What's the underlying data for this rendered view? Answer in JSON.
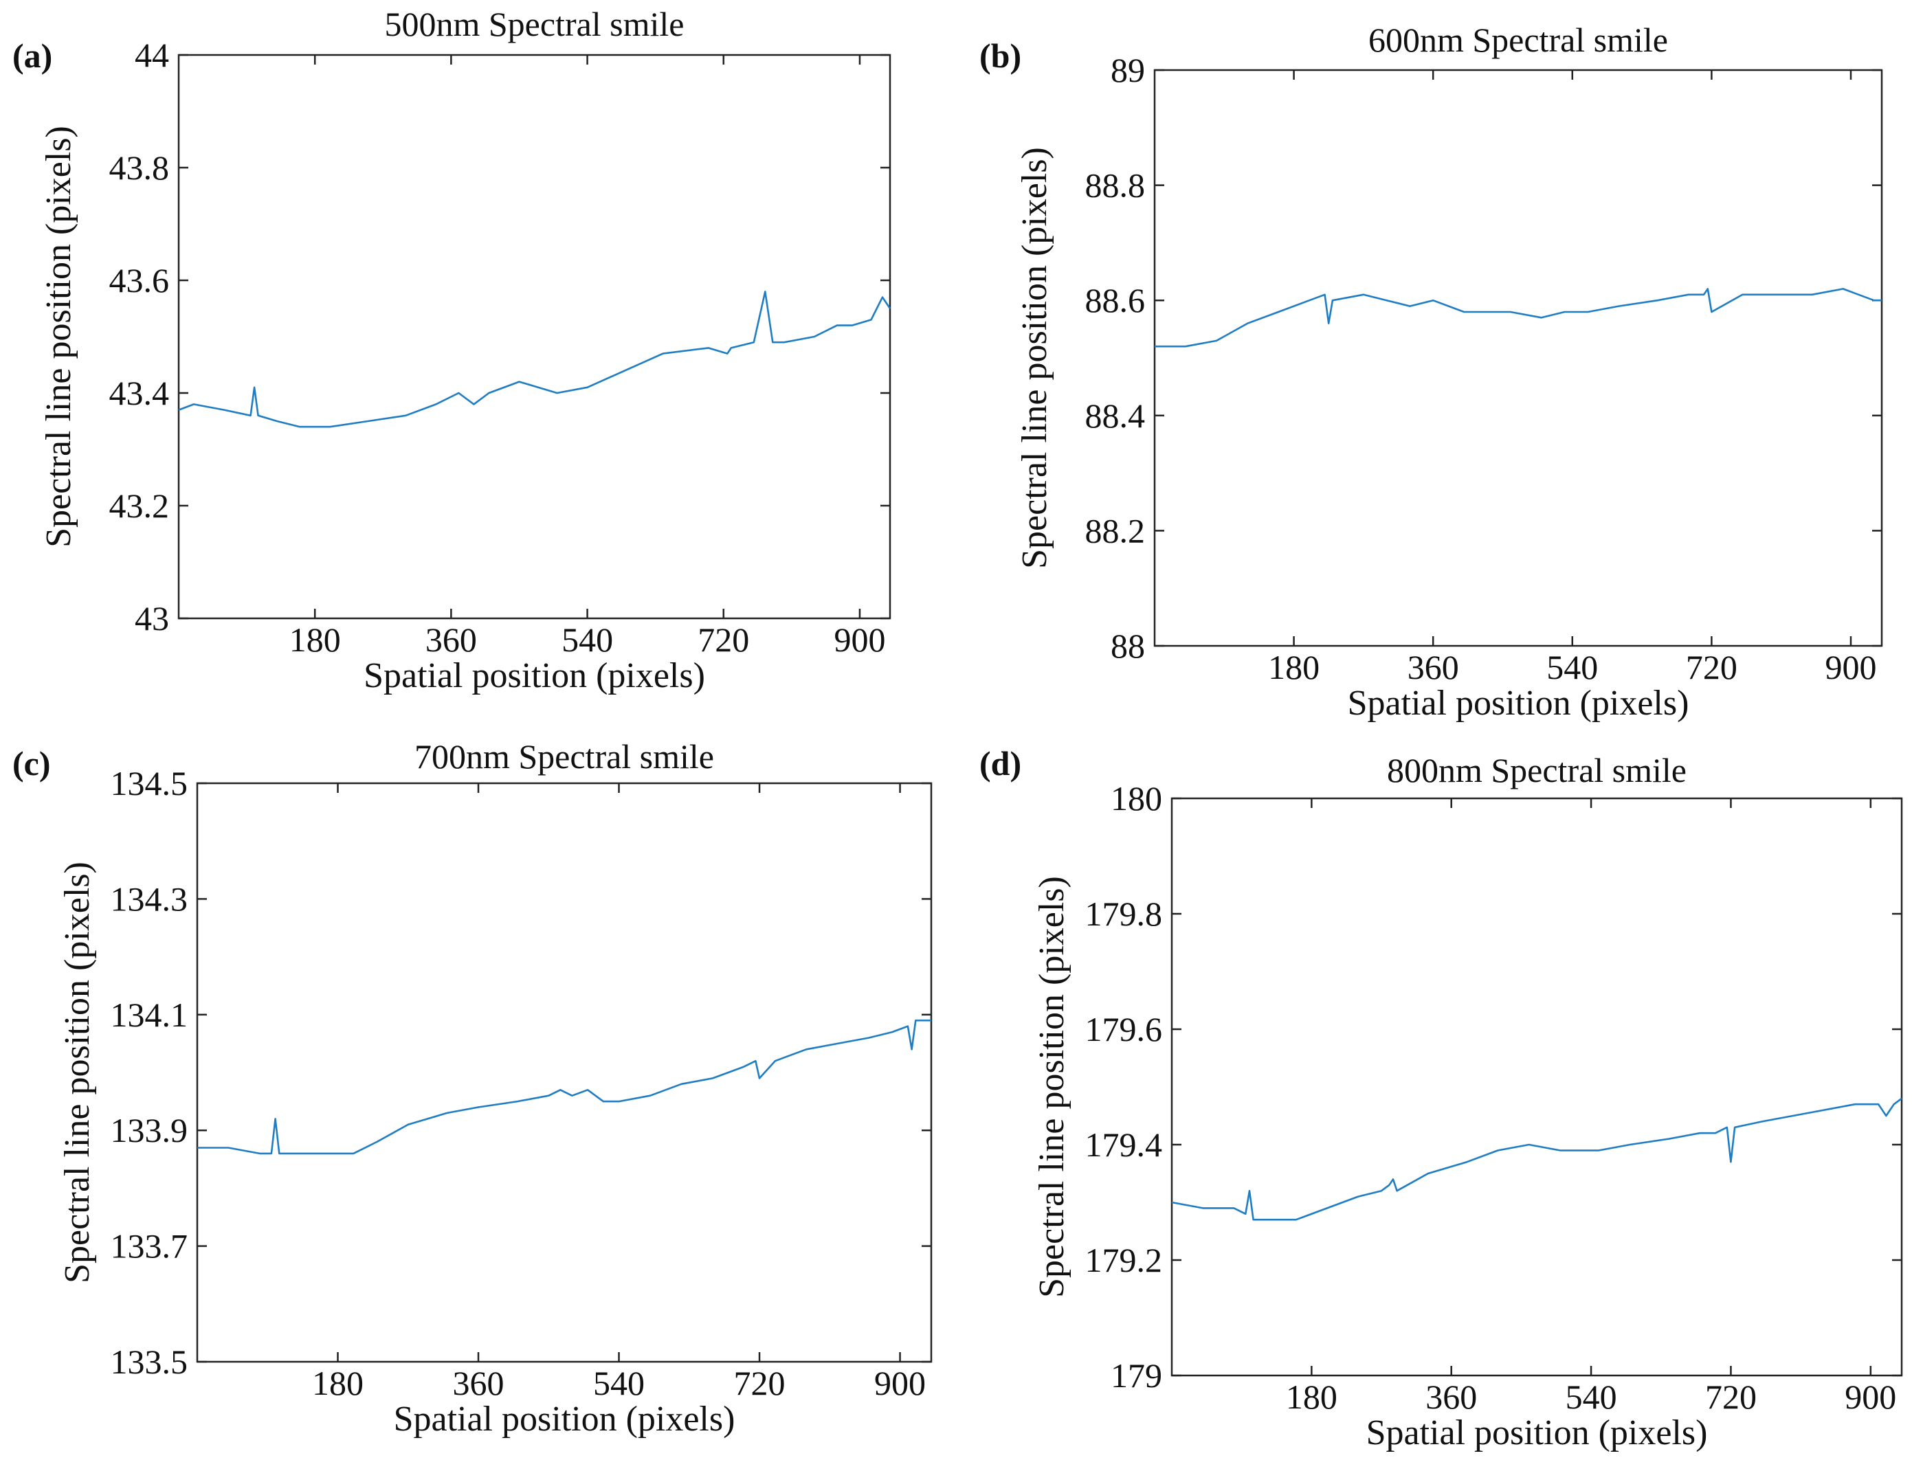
{
  "chart_data": [
    {
      "type": "line",
      "panel": "(a)",
      "title": "500nm Spectral smile",
      "xlabel": "Spatial position (pixels)",
      "ylabel": "Spectral line position (pixels)",
      "xlim": [
        0,
        940
      ],
      "ylim": [
        43,
        44
      ],
      "xticks": [
        180,
        360,
        540,
        720,
        900
      ],
      "yticks": [
        43,
        43.2,
        43.4,
        43.6,
        43.8,
        44
      ],
      "ytick_labels": [
        "43",
        "43.2",
        "43.4",
        "43.6",
        "43.8",
        "44"
      ],
      "series": [
        {
          "name": "500nm",
          "x": [
            0,
            20,
            60,
            95,
            100,
            105,
            130,
            160,
            200,
            250,
            300,
            340,
            370,
            390,
            410,
            450,
            500,
            540,
            590,
            640,
            700,
            725,
            730,
            760,
            775,
            785,
            800,
            840,
            870,
            890,
            915,
            930,
            940
          ],
          "y": [
            43.37,
            43.38,
            43.37,
            43.36,
            43.41,
            43.36,
            43.35,
            43.34,
            43.34,
            43.35,
            43.36,
            43.38,
            43.4,
            43.38,
            43.4,
            43.42,
            43.4,
            43.41,
            43.44,
            43.47,
            43.48,
            43.47,
            43.48,
            43.49,
            43.58,
            43.49,
            43.49,
            43.5,
            43.52,
            43.52,
            43.53,
            43.57,
            43.55
          ]
        }
      ]
    },
    {
      "type": "line",
      "panel": "(b)",
      "title": "600nm Spectral smile",
      "xlabel": "Spatial position (pixels)",
      "ylabel": "Spectral line position (pixels)",
      "xlim": [
        0,
        940
      ],
      "ylim": [
        88,
        89
      ],
      "xticks": [
        180,
        360,
        540,
        720,
        900
      ],
      "yticks": [
        88,
        88.2,
        88.4,
        88.6,
        88.8,
        89
      ],
      "ytick_labels": [
        "88",
        "88.2",
        "88.4",
        "88.6",
        "88.8",
        "89"
      ],
      "series": [
        {
          "name": "600nm",
          "x": [
            0,
            40,
            80,
            120,
            160,
            200,
            220,
            225,
            230,
            270,
            300,
            330,
            360,
            400,
            460,
            500,
            530,
            560,
            600,
            650,
            690,
            710,
            715,
            720,
            760,
            800,
            850,
            890,
            910,
            930,
            940
          ],
          "y": [
            88.52,
            88.52,
            88.53,
            88.56,
            88.58,
            88.6,
            88.61,
            88.56,
            88.6,
            88.61,
            88.6,
            88.59,
            88.6,
            88.58,
            88.58,
            88.57,
            88.58,
            88.58,
            88.59,
            88.6,
            88.61,
            88.61,
            88.62,
            88.58,
            88.61,
            88.61,
            88.61,
            88.62,
            88.61,
            88.6,
            88.6
          ]
        }
      ]
    },
    {
      "type": "line",
      "panel": "(c)",
      "title": "700nm Spectral smile",
      "xlabel": "Spatial position (pixels)",
      "ylabel": "Spectral line position (pixels)",
      "xlim": [
        0,
        940
      ],
      "ylim": [
        133.5,
        134.5
      ],
      "xticks": [
        180,
        360,
        540,
        720,
        900
      ],
      "yticks": [
        133.5,
        133.7,
        133.9,
        134.1,
        134.3,
        134.5
      ],
      "ytick_labels": [
        "133.5",
        "133.7",
        "133.9",
        "134.1",
        "134.3",
        "134.5"
      ],
      "series": [
        {
          "name": "700nm",
          "x": [
            0,
            40,
            80,
            95,
            100,
            105,
            130,
            160,
            200,
            230,
            270,
            320,
            360,
            410,
            450,
            465,
            480,
            500,
            520,
            540,
            580,
            620,
            660,
            700,
            715,
            720,
            740,
            780,
            820,
            860,
            890,
            910,
            915,
            920,
            940
          ],
          "y": [
            133.87,
            133.87,
            133.86,
            133.86,
            133.92,
            133.86,
            133.86,
            133.86,
            133.86,
            133.88,
            133.91,
            133.93,
            133.94,
            133.95,
            133.96,
            133.97,
            133.96,
            133.97,
            133.95,
            133.95,
            133.96,
            133.98,
            133.99,
            134.01,
            134.02,
            133.99,
            134.02,
            134.04,
            134.05,
            134.06,
            134.07,
            134.08,
            134.04,
            134.09,
            134.09
          ]
        }
      ]
    },
    {
      "type": "line",
      "panel": "(d)",
      "title": "800nm Spectral smile",
      "xlabel": "Spatial position (pixels)",
      "ylabel": "Spectral line position (pixels)",
      "xlim": [
        0,
        940
      ],
      "ylim": [
        179,
        180
      ],
      "xticks": [
        180,
        360,
        540,
        720,
        900
      ],
      "yticks": [
        179,
        179.2,
        179.4,
        179.6,
        179.8,
        180
      ],
      "ytick_labels": [
        "179",
        "179.2",
        "179.4",
        "179.6",
        "179.8",
        "180"
      ],
      "series": [
        {
          "name": "800nm",
          "x": [
            0,
            40,
            80,
            95,
            100,
            105,
            130,
            160,
            200,
            240,
            270,
            280,
            285,
            290,
            330,
            380,
            420,
            460,
            500,
            550,
            590,
            640,
            680,
            700,
            715,
            720,
            725,
            760,
            800,
            840,
            880,
            910,
            920,
            930,
            940
          ],
          "y": [
            179.3,
            179.29,
            179.29,
            179.28,
            179.32,
            179.27,
            179.27,
            179.27,
            179.29,
            179.31,
            179.32,
            179.33,
            179.34,
            179.32,
            179.35,
            179.37,
            179.39,
            179.4,
            179.39,
            179.39,
            179.4,
            179.41,
            179.42,
            179.42,
            179.43,
            179.37,
            179.43,
            179.44,
            179.45,
            179.46,
            179.47,
            179.47,
            179.45,
            179.47,
            179.48
          ]
        }
      ]
    }
  ]
}
